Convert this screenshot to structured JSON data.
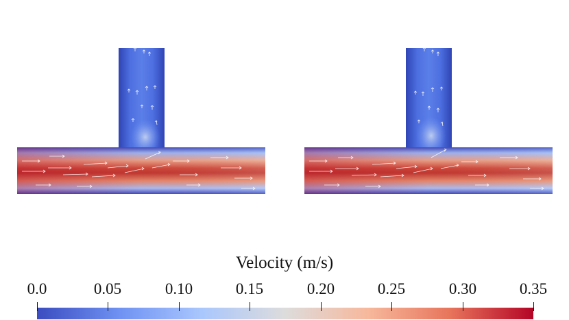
{
  "figure": {
    "panels": [
      {
        "name": "left-tjunction-velocity-plot"
      },
      {
        "name": "right-tjunction-velocity-plot"
      }
    ]
  },
  "colorbar": {
    "title": "Velocity (m/s)",
    "range": [
      0.0,
      0.35
    ],
    "ticks": [
      "0.0",
      "0.05",
      "0.10",
      "0.15",
      "0.20",
      "0.25",
      "0.30",
      "0.35"
    ],
    "tick_values": [
      0.0,
      0.05,
      0.1,
      0.15,
      0.2,
      0.25,
      0.3,
      0.35
    ],
    "colors": [
      "#3b4cc0",
      "#6f92f3",
      "#aac7fd",
      "#dddcdc",
      "#f7b89c",
      "#e7745b",
      "#b40426"
    ]
  }
}
